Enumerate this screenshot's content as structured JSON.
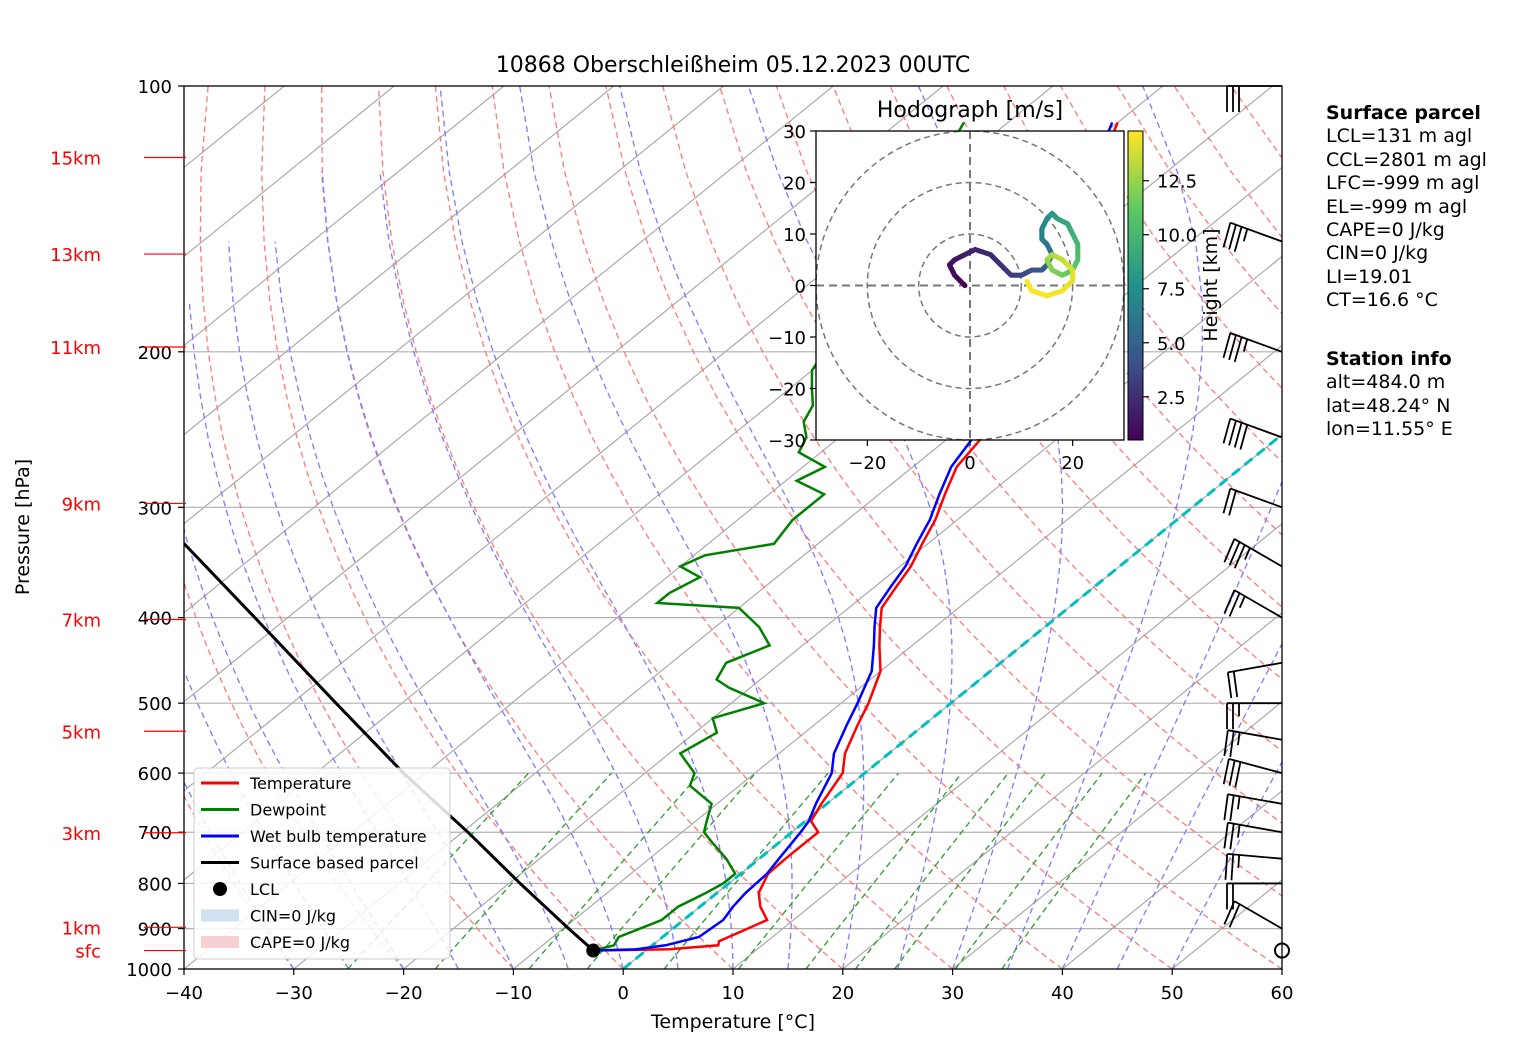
{
  "title": "10868 Oberschleißheim 05.12.2023 00UTC",
  "colors": {
    "temperature": "#ff0000",
    "dewpoint": "#008000",
    "wetbulb": "#0000ff",
    "parcel": "#000000",
    "dry_adiabat": "#ff6b6b",
    "moist_adiabat": "#7b7bff",
    "isotherm": "#aaaaaa",
    "mixing_ratio": "#2e9a2e",
    "freezing_isotherm": "#00bfbf",
    "height_labels": "#ff0000"
  },
  "chart_data": {
    "type": "skew-t",
    "xlabel": "Temperature [°C]",
    "ylabel": "Pressure [hPa]",
    "xlim": [
      -40,
      60
    ],
    "ylim": [
      1000,
      100
    ],
    "y_scale": "log",
    "grid": true,
    "legend_position": "lower-left",
    "x_ticks": [
      "−40",
      "−30",
      "−20",
      "−10",
      "0",
      "10",
      "20",
      "30",
      "40",
      "50",
      "60"
    ],
    "pressure_ticks": [
      {
        "p": 100,
        "label": "100"
      },
      {
        "p": 200,
        "label": "200"
      },
      {
        "p": 300,
        "label": "300"
      },
      {
        "p": 400,
        "label": "400"
      },
      {
        "p": 500,
        "label": "500"
      },
      {
        "p": 600,
        "label": "600"
      },
      {
        "p": 700,
        "label": "700"
      },
      {
        "p": 800,
        "label": "800"
      },
      {
        "p": 900,
        "label": "900"
      },
      {
        "p": 1000,
        "label": "1000"
      }
    ],
    "height_labels": [
      {
        "p": 120.5,
        "label": "15km"
      },
      {
        "p": 155,
        "label": "13km"
      },
      {
        "p": 197.5,
        "label": "11km"
      },
      {
        "p": 297,
        "label": "9km"
      },
      {
        "p": 402,
        "label": "7km"
      },
      {
        "p": 538,
        "label": "5km"
      },
      {
        "p": 701,
        "label": "3km"
      },
      {
        "p": 897,
        "label": "1km"
      },
      {
        "p": 953,
        "label": "sfc"
      }
    ],
    "legend": [
      {
        "label": "Temperature",
        "kind": "line",
        "color": "#ff0000"
      },
      {
        "label": "Dewpoint",
        "kind": "line",
        "color": "#008000"
      },
      {
        "label": "Wet bulb temperature",
        "kind": "line",
        "color": "#0000ff"
      },
      {
        "label": "Surface based parcel",
        "kind": "line",
        "color": "#000000"
      },
      {
        "label": "LCL",
        "kind": "marker",
        "color": "#000000"
      },
      {
        "label": "CIN=0 J/kg",
        "kind": "patch",
        "color": "#cfe1ef"
      },
      {
        "label": "CAPE=0 J/kg",
        "kind": "patch",
        "color": "#f6d0d3"
      }
    ],
    "temperature": [
      [
        953,
        -4.8
      ],
      [
        950,
        2
      ],
      [
        940,
        6
      ],
      [
        930,
        5.6
      ],
      [
        900,
        6.8
      ],
      [
        880,
        7.6
      ],
      [
        850,
        5.5
      ],
      [
        820,
        3.8
      ],
      [
        780,
        2.5
      ],
      [
        750,
        2.4
      ],
      [
        700,
        2.4
      ],
      [
        680,
        0.5
      ],
      [
        650,
        -0.5
      ],
      [
        600,
        -2
      ],
      [
        570,
        -4
      ],
      [
        530,
        -6
      ],
      [
        500,
        -7.5
      ],
      [
        460,
        -10
      ],
      [
        430,
        -13
      ],
      [
        410,
        -15
      ],
      [
        390,
        -17
      ],
      [
        370,
        -18
      ],
      [
        350,
        -19
      ],
      [
        330,
        -20.5
      ],
      [
        310,
        -22
      ],
      [
        290,
        -24
      ],
      [
        270,
        -26
      ],
      [
        250,
        -27
      ],
      [
        240,
        -29
      ],
      [
        225,
        -31
      ],
      [
        210,
        -32.5
      ],
      [
        200,
        -34.5
      ],
      [
        185,
        -37
      ],
      [
        170,
        -38.5
      ],
      [
        160,
        -40
      ],
      [
        150,
        -42
      ],
      [
        140,
        -44.5
      ],
      [
        130,
        -46
      ],
      [
        120,
        -47.5
      ],
      [
        110,
        -50
      ]
    ],
    "wetbulb": [
      [
        953,
        -4.8
      ],
      [
        950,
        -1
      ],
      [
        940,
        1.2
      ],
      [
        920,
        3.3
      ],
      [
        880,
        3.6
      ],
      [
        850,
        3
      ],
      [
        820,
        2.6
      ],
      [
        780,
        2.4
      ],
      [
        750,
        1.8
      ],
      [
        700,
        0.8
      ],
      [
        680,
        0.3
      ],
      [
        650,
        -1
      ],
      [
        600,
        -3
      ],
      [
        570,
        -5
      ],
      [
        530,
        -7
      ],
      [
        500,
        -8.5
      ],
      [
        460,
        -10.8
      ],
      [
        430,
        -13.5
      ],
      [
        410,
        -15.5
      ],
      [
        390,
        -17.5
      ],
      [
        370,
        -18.5
      ],
      [
        350,
        -19.5
      ],
      [
        330,
        -21
      ],
      [
        310,
        -22.5
      ],
      [
        290,
        -24.5
      ],
      [
        270,
        -26.5
      ],
      [
        250,
        -27.8
      ],
      [
        240,
        -29.5
      ],
      [
        225,
        -31.5
      ],
      [
        210,
        -33.2
      ],
      [
        200,
        -35
      ],
      [
        185,
        -37.5
      ],
      [
        170,
        -39
      ],
      [
        160,
        -40.5
      ],
      [
        150,
        -42.5
      ],
      [
        140,
        -45
      ],
      [
        130,
        -46.5
      ],
      [
        120,
        -48
      ],
      [
        110,
        -50.5
      ]
    ],
    "dewpoint": [
      [
        953,
        -4.8
      ],
      [
        940,
        -3.5
      ],
      [
        920,
        -4
      ],
      [
        900,
        -3
      ],
      [
        880,
        -2
      ],
      [
        850,
        -2
      ],
      [
        820,
        -1
      ],
      [
        800,
        -0.5
      ],
      [
        780,
        -0.5
      ],
      [
        750,
        -3
      ],
      [
        720,
        -6
      ],
      [
        700,
        -8
      ],
      [
        680,
        -9
      ],
      [
        650,
        -10.5
      ],
      [
        620,
        -14.5
      ],
      [
        600,
        -15.5
      ],
      [
        570,
        -19
      ],
      [
        540,
        -18
      ],
      [
        520,
        -20
      ],
      [
        500,
        -17
      ],
      [
        480,
        -22
      ],
      [
        470,
        -24
      ],
      [
        450,
        -25
      ],
      [
        430,
        -23
      ],
      [
        410,
        -26
      ],
      [
        390,
        -30
      ],
      [
        385,
        -38
      ],
      [
        375,
        -38
      ],
      [
        360,
        -37
      ],
      [
        350,
        -40
      ],
      [
        340,
        -39
      ],
      [
        330,
        -34
      ],
      [
        310,
        -35
      ],
      [
        290,
        -35
      ],
      [
        280,
        -39
      ],
      [
        270,
        -38
      ],
      [
        260,
        -42
      ],
      [
        250,
        -43
      ],
      [
        240,
        -45
      ],
      [
        230,
        -46
      ],
      [
        220,
        -48
      ],
      [
        210,
        -50
      ],
      [
        200,
        -51
      ],
      [
        190,
        -52
      ],
      [
        180,
        -53
      ],
      [
        170,
        -54
      ],
      [
        160,
        -55
      ],
      [
        150,
        -56
      ],
      [
        140,
        -57
      ],
      [
        130,
        -59
      ],
      [
        120,
        -62
      ],
      [
        110,
        -64
      ]
    ],
    "parcel": [
      [
        1000,
        -40
      ],
      [
        900,
        -30
      ],
      [
        800,
        -21
      ],
      [
        700,
        -12
      ],
      [
        600,
        -3
      ],
      [
        500,
        6
      ],
      [
        400,
        15
      ],
      [
        300,
        24
      ],
      [
        200,
        33
      ],
      [
        150,
        38
      ],
      [
        100,
        43
      ]
    ],
    "parcel_dry": [
      [
        953,
        -4.8
      ],
      [
        900,
        -9.5
      ],
      [
        800,
        -19
      ],
      [
        700,
        -29.5
      ],
      [
        600,
        -42
      ],
      [
        500,
        -56
      ],
      [
        400,
        -73
      ],
      [
        300,
        -95
      ],
      [
        280,
        -100
      ]
    ],
    "lcl_marker": {
      "p": 953,
      "t": -4.8
    },
    "freezing_level": [
      [
        1000,
        0
      ],
      [
        100,
        0
      ]
    ],
    "wind_barbs_kt": [
      {
        "p": 953,
        "speed": 0,
        "dir": 0
      },
      {
        "p": 900,
        "speed": 20,
        "dir": 300
      },
      {
        "p": 800,
        "speed": 20,
        "dir": 270
      },
      {
        "p": 750,
        "speed": 25,
        "dir": 275
      },
      {
        "p": 700,
        "speed": 25,
        "dir": 280
      },
      {
        "p": 650,
        "speed": 25,
        "dir": 280
      },
      {
        "p": 600,
        "speed": 30,
        "dir": 285
      },
      {
        "p": 550,
        "speed": 25,
        "dir": 280
      },
      {
        "p": 500,
        "speed": 25,
        "dir": 270
      },
      {
        "p": 450,
        "speed": 20,
        "dir": 260
      },
      {
        "p": 400,
        "speed": 25,
        "dir": 300
      },
      {
        "p": 350,
        "speed": 35,
        "dir": 300
      },
      {
        "p": 300,
        "speed": 20,
        "dir": 290
      },
      {
        "p": 250,
        "speed": 40,
        "dir": 290
      },
      {
        "p": 200,
        "speed": 35,
        "dir": 290
      },
      {
        "p": 150,
        "speed": 35,
        "dir": 290
      },
      {
        "p": 100,
        "speed": 30,
        "dir": 270
      }
    ],
    "hodograph": {
      "title": "Hodograph [m/s]",
      "xlim": [
        -30,
        30
      ],
      "ylim": [
        -30,
        30
      ],
      "ticks": [
        "−30",
        "−20",
        "−10",
        "0",
        "10",
        "20",
        "30"
      ],
      "x_ticks": [
        "−20",
        "0",
        "20"
      ],
      "rings": [
        10,
        20,
        30
      ],
      "colorbar_label": "Height [km]",
      "colorbar_ticks": [
        "2.5",
        "5.0",
        "7.5",
        "10.0",
        "12.5"
      ],
      "colorbar_range": [
        0.5,
        14.8
      ],
      "points": [
        [
          -1,
          0,
          0.5
        ],
        [
          -3,
          2,
          0.8
        ],
        [
          -4,
          4,
          1.1
        ],
        [
          -3,
          5,
          1.4
        ],
        [
          -1,
          6,
          1.7
        ],
        [
          1,
          7,
          2
        ],
        [
          4,
          6,
          2.3
        ],
        [
          6,
          4,
          2.6
        ],
        [
          8,
          2,
          3
        ],
        [
          10,
          2,
          3.5
        ],
        [
          12,
          3,
          4
        ],
        [
          14,
          3,
          4.5
        ],
        [
          15,
          4,
          5
        ],
        [
          16,
          6,
          5.5
        ],
        [
          15,
          8,
          6
        ],
        [
          14,
          9,
          6.5
        ],
        [
          14,
          11,
          7
        ],
        [
          15,
          13,
          7.5
        ],
        [
          16,
          14,
          8
        ],
        [
          17,
          13,
          8.5
        ],
        [
          19,
          12,
          9
        ],
        [
          20,
          10,
          9.5
        ],
        [
          21,
          8,
          10
        ],
        [
          21,
          5,
          10.5
        ],
        [
          20,
          3,
          11
        ],
        [
          18,
          2,
          11.5
        ],
        [
          16,
          3,
          12
        ],
        [
          15,
          5,
          12.5
        ],
        [
          16,
          6,
          13
        ],
        [
          18,
          5,
          13.5
        ],
        [
          20,
          3,
          14
        ],
        [
          20,
          1,
          14.3
        ],
        [
          18,
          -1,
          14.5
        ],
        [
          15,
          -2,
          14.6
        ],
        [
          12,
          -1,
          14.7
        ],
        [
          11,
          1,
          14.8
        ]
      ]
    }
  },
  "side_panel": {
    "surface_header": "Surface parcel",
    "surface_lines": [
      "LCL=131 m agl",
      "CCL=2801 m agl",
      "LFC=-999 m agl",
      "EL=-999 m agl",
      "CAPE=0 J/kg",
      "CIN=0 J/kg",
      "LI=19.01",
      "CT=16.6 °C"
    ],
    "station_header": "Station info",
    "station_lines": [
      "alt=484.0 m",
      "lat=48.24° N",
      "lon=11.55° E"
    ]
  }
}
